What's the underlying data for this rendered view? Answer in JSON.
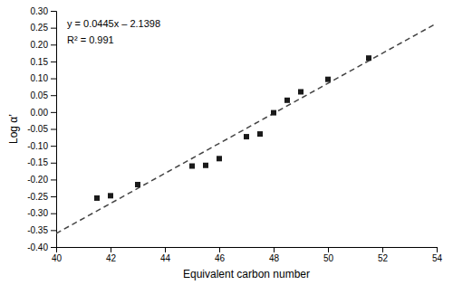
{
  "chart_data": {
    "type": "scatter",
    "ylabel": "Log α’",
    "annotations": [
      "y = 0.0445x – 2.1398",
      "R² = 0.991",
      "Equivalent carbon number"
    ],
    "xlim": [
      40,
      54
    ],
    "ylim": [
      -0.4,
      0.3
    ],
    "xticks": [
      40,
      42,
      44,
      46,
      48,
      50,
      52,
      54
    ],
    "yticks": [
      {
        "value": -0.4,
        "label": "-0.40"
      },
      {
        "value": -0.35,
        "label": "-0.35"
      },
      {
        "value": -0.3,
        "label": "-0.30"
      },
      {
        "value": -0.25,
        "label": "-0.25"
      },
      {
        "value": -0.2,
        "label": "-0.20"
      },
      {
        "value": -0.15,
        "label": "-0.15"
      },
      {
        "value": -0.1,
        "label": "-0.10"
      },
      {
        "value": -0.05,
        "label": "-0.05"
      },
      {
        "value": 0,
        "label": "0.00"
      },
      {
        "value": 0.05,
        "label": "0.05"
      },
      {
        "value": 0.1,
        "label": "0.10"
      },
      {
        "value": 0.15,
        "label": "0.15"
      },
      {
        "value": 0.2,
        "label": "0.20"
      },
      {
        "value": 0.25,
        "label": "0.25"
      },
      {
        "value": 0.3,
        "label": "0.30"
      }
    ],
    "series": [
      {
        "type": "line",
        "x": [
          40.0,
          54.0
        ],
        "values": [
          -0.3598,
          0.2632
        ],
        "color": "#444444",
        "line_style": "dashed"
      },
      {
        "type": "scatter",
        "x": [
          41.5,
          42.0,
          43.0,
          45.0,
          45.5,
          46.0,
          47.0,
          47.5,
          48.0,
          48.5,
          49.0,
          50.0,
          51.5
        ],
        "values": [
          -0.255,
          -0.248,
          -0.215,
          -0.16,
          -0.158,
          -0.138,
          -0.073,
          -0.065,
          -0.002,
          0.035,
          0.06,
          0.097,
          0.16
        ],
        "color": "#1a1a1a",
        "marker": "square"
      }
    ]
  }
}
